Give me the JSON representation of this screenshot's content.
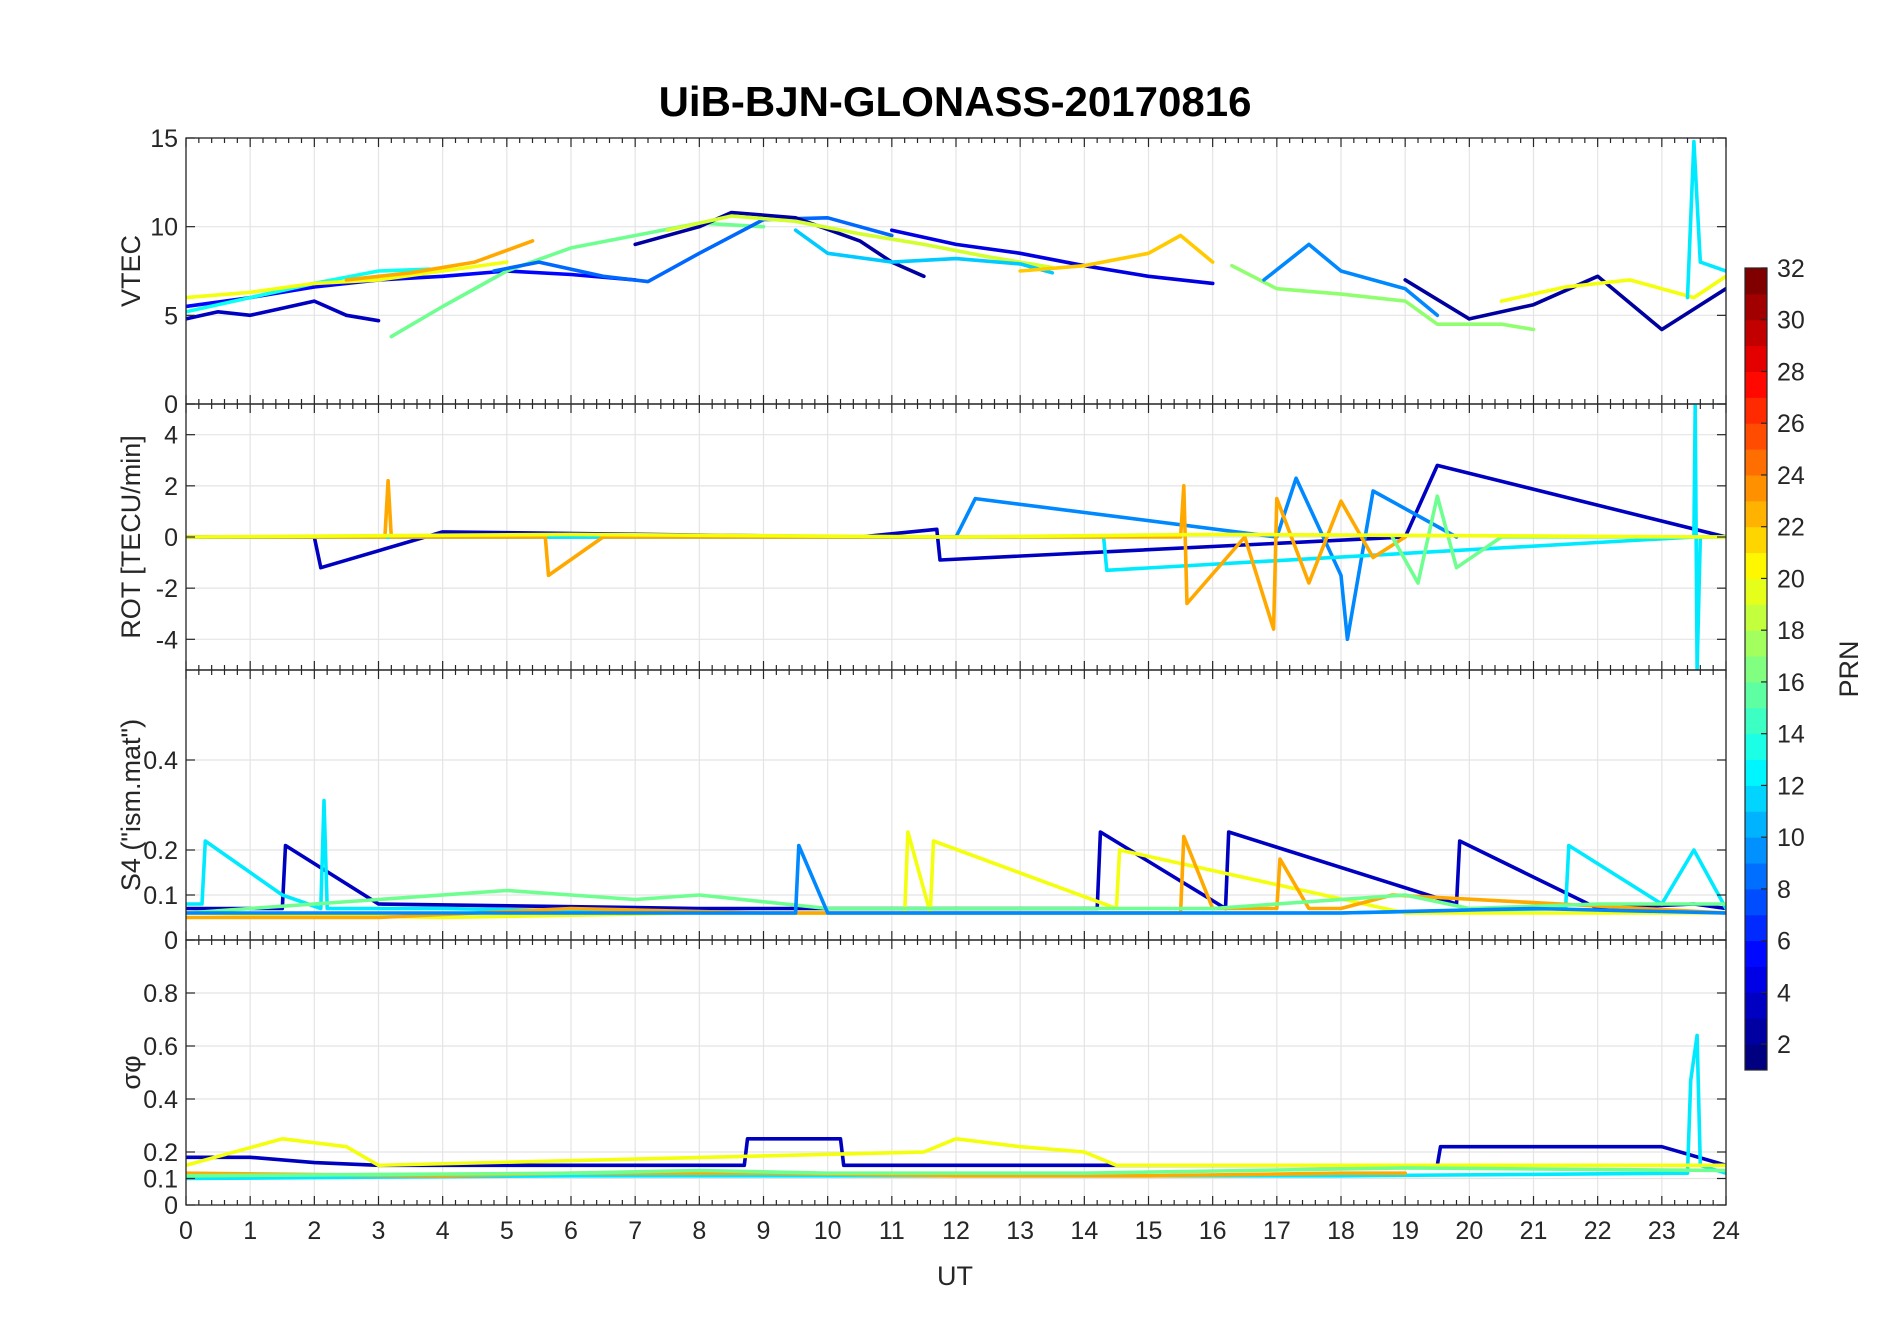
{
  "chart_data": {
    "type": "line",
    "title": "UiB-BJN-GLONASS-20170816",
    "xlabel": "UT",
    "xlim": [
      0,
      24
    ],
    "xticks": [
      "0",
      "1",
      "2",
      "3",
      "4",
      "5",
      "6",
      "7",
      "8",
      "9",
      "10",
      "11",
      "12",
      "13",
      "14",
      "15",
      "16",
      "17",
      "18",
      "19",
      "20",
      "21",
      "22",
      "23",
      "24"
    ],
    "grid": true,
    "panels": [
      {
        "ylabel": "VTEC",
        "ylim": [
          0,
          15
        ],
        "yticks": [
          {
            "v": 0,
            "t": "0"
          },
          {
            "v": 5,
            "t": "5"
          },
          {
            "v": 10,
            "t": "10"
          },
          {
            "v": 15,
            "t": "15"
          }
        ],
        "series": [
          {
            "prn": 3,
            "x": [
              0,
              0.5,
              1,
              1.5,
              2,
              2.5,
              3
            ],
            "y": [
              4.8,
              5.2,
              5.0,
              5.4,
              5.8,
              5.0,
              4.7
            ]
          },
          {
            "prn": 5,
            "x": [
              0,
              1,
              2,
              3,
              4,
              5,
              6,
              7
            ],
            "y": [
              5.5,
              6.0,
              6.6,
              7.0,
              7.2,
              7.5,
              7.3,
              7.0
            ]
          },
          {
            "prn": 13,
            "x": [
              0,
              1,
              2,
              3,
              3.8
            ],
            "y": [
              5.2,
              6.0,
              6.8,
              7.5,
              7.6
            ]
          },
          {
            "prn": 20,
            "x": [
              0,
              1,
              2,
              3,
              4,
              5
            ],
            "y": [
              6.0,
              6.3,
              6.8,
              7.0,
              7.5,
              8.0
            ]
          },
          {
            "prn": 23,
            "x": [
              2.5,
              3.5,
              4.5,
              5.4
            ],
            "y": [
              7.0,
              7.4,
              8.0,
              9.2
            ]
          },
          {
            "prn": 16,
            "x": [
              3.2,
              4,
              5,
              6,
              7,
              8,
              9
            ],
            "y": [
              3.8,
              5.5,
              7.5,
              8.8,
              9.5,
              10.2,
              10.0
            ]
          },
          {
            "prn": 8,
            "x": [
              4.8,
              5.5,
              6.5,
              7.2,
              8,
              9,
              10,
              11
            ],
            "y": [
              7.5,
              8.0,
              7.2,
              6.9,
              8.5,
              10.4,
              10.5,
              9.5
            ]
          },
          {
            "prn": 2,
            "x": [
              7,
              8,
              8.5,
              9.5,
              10.5,
              11,
              11.5
            ],
            "y": [
              9.0,
              10.0,
              10.8,
              10.5,
              9.2,
              8.0,
              7.2
            ]
          },
          {
            "prn": 19,
            "x": [
              7.5,
              8.5,
              9.5,
              10.5,
              11.5,
              12.5,
              13.5
            ],
            "y": [
              9.8,
              10.6,
              10.3,
              9.6,
              9.0,
              8.3,
              7.7
            ]
          },
          {
            "prn": 11,
            "x": [
              9.5,
              10,
              11,
              12,
              13,
              13.5
            ],
            "y": [
              9.8,
              8.5,
              8.0,
              8.2,
              7.9,
              7.4
            ]
          },
          {
            "prn": 4,
            "x": [
              11,
              12,
              13,
              14,
              15,
              16
            ],
            "y": [
              9.8,
              9.0,
              8.5,
              7.8,
              7.2,
              6.8
            ]
          },
          {
            "prn": 22,
            "x": [
              13,
              14,
              15,
              15.5,
              16
            ],
            "y": [
              7.5,
              7.8,
              8.5,
              9.5,
              8.0
            ]
          },
          {
            "prn": 17,
            "x": [
              16.3,
              17,
              18,
              19,
              19.5,
              20.5,
              21
            ],
            "y": [
              7.8,
              6.5,
              6.2,
              5.8,
              4.5,
              4.5,
              4.2
            ]
          },
          {
            "prn": 9,
            "x": [
              16.8,
              17.5,
              18,
              18.5,
              19,
              19.5
            ],
            "y": [
              7.0,
              9.0,
              7.5,
              7.0,
              6.5,
              5.0
            ]
          },
          {
            "prn": 2,
            "x": [
              19,
              20,
              21,
              22,
              23,
              24
            ],
            "y": [
              7.0,
              4.8,
              5.6,
              7.2,
              4.2,
              6.5
            ]
          },
          {
            "prn": 20,
            "x": [
              20.5,
              21.5,
              22.5,
              23.5,
              24
            ],
            "y": [
              5.8,
              6.6,
              7.0,
              6.0,
              7.2
            ]
          },
          {
            "prn": 12,
            "x": [
              23.4,
              23.5,
              23.6,
              24
            ],
            "y": [
              6.0,
              14.8,
              8.0,
              7.5
            ]
          }
        ]
      },
      {
        "ylabel": "ROT [TECU/min]",
        "ylim": [
          -5.2,
          5.2
        ],
        "yticks": [
          {
            "v": -4,
            "t": "-4"
          },
          {
            "v": -2,
            "t": "-2"
          },
          {
            "v": 0,
            "t": "0"
          },
          {
            "v": 2,
            "t": "2"
          },
          {
            "v": 4,
            "t": "4"
          }
        ],
        "series": [
          {
            "prn": 3,
            "x": [
              0,
              2,
              2.1,
              4,
              10.5,
              11.7,
              11.75,
              19,
              19.5,
              24
            ],
            "y": [
              0,
              0,
              -1.2,
              0.2,
              0,
              0.3,
              -0.9,
              0,
              2.8,
              0
            ]
          },
          {
            "prn": 9,
            "x": [
              0,
              6,
              8,
              12,
              12.3,
              17,
              17.3,
              18,
              18.1,
              18.5,
              19.8
            ],
            "y": [
              0,
              0,
              0,
              0,
              1.5,
              0,
              2.3,
              -1.5,
              -4.0,
              1.8,
              0
            ]
          },
          {
            "prn": 12,
            "x": [
              0,
              7.2,
              14.3,
              14.35,
              23.5,
              23.52,
              23.55,
              23.6,
              24
            ],
            "y": [
              0,
              0,
              0,
              -1.3,
              0,
              5.2,
              -5.2,
              0,
              0
            ]
          },
          {
            "prn": 23,
            "x": [
              0,
              3.1,
              3.15,
              3.2,
              5.6,
              5.65,
              6.5,
              15.5,
              15.55,
              15.6,
              16.5,
              16.95,
              17.0,
              17.5,
              18,
              18.5,
              19
            ],
            "y": [
              0,
              0,
              2.2,
              0,
              0,
              -1.5,
              0,
              0,
              2.0,
              -2.6,
              0,
              -3.6,
              1.5,
              -1.8,
              1.4,
              -0.8,
              0
            ]
          },
          {
            "prn": 16,
            "x": [
              18.8,
              19.2,
              19.5,
              19.8,
              20.5,
              24
            ],
            "y": [
              0,
              -1.8,
              1.6,
              -1.2,
              0,
              0
            ]
          },
          {
            "prn": 20,
            "x": [
              0,
              6,
              12,
              16,
              24
            ],
            "y": [
              0,
              0.1,
              0,
              0.1,
              0
            ]
          }
        ]
      },
      {
        "ylabel": "S4 (\"ism.mat\")",
        "ylim": [
          0,
          0.6
        ],
        "yticks": [
          {
            "v": 0,
            "t": "0"
          },
          {
            "v": 0.1,
            "t": "0.1"
          },
          {
            "v": 0.2,
            "t": "0.2"
          },
          {
            "v": 0.4,
            "t": "0.4"
          }
        ],
        "series": [
          {
            "prn": 3,
            "x": [
              0,
              1.5,
              1.55,
              3,
              8,
              12,
              14.2,
              14.25,
              16.2,
              16.25,
              19.8,
              19.85,
              22,
              23.5,
              24
            ],
            "y": [
              0.07,
              0.07,
              0.21,
              0.08,
              0.07,
              0.07,
              0.07,
              0.24,
              0.07,
              0.24,
              0.08,
              0.22,
              0.07,
              0.08,
              0.07
            ]
          },
          {
            "prn": 12,
            "x": [
              0,
              0.25,
              0.3,
              1.5,
              2.1,
              2.15,
              2.2,
              4,
              8,
              12,
              18,
              21.5,
              21.55,
              23,
              23.5,
              24
            ],
            "y": [
              0.08,
              0.08,
              0.22,
              0.1,
              0.07,
              0.31,
              0.07,
              0.07,
              0.06,
              0.06,
              0.06,
              0.07,
              0.21,
              0.08,
              0.2,
              0.07
            ]
          },
          {
            "prn": 20,
            "x": [
              0,
              4,
              8,
              11.2,
              11.25,
              11.6,
              11.65,
              14.5,
              14.55,
              19,
              24
            ],
            "y": [
              0.06,
              0.05,
              0.06,
              0.06,
              0.24,
              0.06,
              0.22,
              0.07,
              0.2,
              0.06,
              0.06
            ]
          },
          {
            "prn": 23,
            "x": [
              0,
              3,
              6,
              9,
              12,
              15,
              15.5,
              15.55,
              16,
              17,
              17.05,
              17.5,
              18,
              18.8,
              24
            ],
            "y": [
              0.05,
              0.05,
              0.07,
              0.06,
              0.06,
              0.06,
              0.06,
              0.23,
              0.07,
              0.07,
              0.18,
              0.07,
              0.07,
              0.1,
              0.06
            ]
          },
          {
            "prn": 16,
            "x": [
              0,
              5,
              7,
              8,
              10,
              13,
              16,
              19,
              20,
              22,
              24
            ],
            "y": [
              0.06,
              0.11,
              0.09,
              0.1,
              0.07,
              0.07,
              0.07,
              0.1,
              0.07,
              0.08,
              0.08
            ]
          },
          {
            "prn": 9,
            "x": [
              0,
              6,
              9.5,
              9.55,
              10,
              15,
              18,
              21,
              24
            ],
            "y": [
              0.06,
              0.06,
              0.06,
              0.21,
              0.06,
              0.06,
              0.06,
              0.07,
              0.06
            ]
          }
        ]
      },
      {
        "ylabel": "σφ",
        "ylim": [
          0,
          1
        ],
        "yticks": [
          {
            "v": 0,
            "t": "0"
          },
          {
            "v": 0.1,
            "t": "0.1"
          },
          {
            "v": 0.2,
            "t": "0.2"
          },
          {
            "v": 0.4,
            "t": "0.4"
          },
          {
            "v": 0.6,
            "t": "0.6"
          },
          {
            "v": 0.8,
            "t": "0.8"
          }
        ],
        "series": [
          {
            "prn": 3,
            "x": [
              0,
              1,
              2,
              3,
              8.7,
              8.75,
              10.2,
              10.25,
              19.5,
              19.55,
              23,
              24
            ],
            "y": [
              0.18,
              0.18,
              0.16,
              0.15,
              0.15,
              0.25,
              0.25,
              0.15,
              0.15,
              0.22,
              0.22,
              0.15
            ]
          },
          {
            "prn": 12,
            "x": [
              0,
              6,
              12,
              18,
              23.4,
              23.45,
              23.55,
              23.6,
              24
            ],
            "y": [
              0.1,
              0.11,
              0.11,
              0.11,
              0.12,
              0.47,
              0.64,
              0.15,
              0.12
            ]
          },
          {
            "prn": 20,
            "x": [
              0,
              1.5,
              2.5,
              3,
              11.5,
              12,
              13,
              14,
              14.5,
              15,
              24
            ],
            "y": [
              0.15,
              0.25,
              0.22,
              0.15,
              0.2,
              0.25,
              0.22,
              0.2,
              0.15,
              0.15,
              0.15
            ]
          },
          {
            "prn": 23,
            "x": [
              0,
              4,
              6,
              9,
              12,
              15,
              18,
              19
            ],
            "y": [
              0.12,
              0.11,
              0.12,
              0.12,
              0.11,
              0.11,
              0.12,
              0.12
            ]
          },
          {
            "prn": 16,
            "x": [
              0,
              6,
              8,
              10,
              14,
              19,
              24
            ],
            "y": [
              0.11,
              0.12,
              0.13,
              0.12,
              0.12,
              0.14,
              0.13
            ]
          }
        ]
      }
    ],
    "colorbar": {
      "label": "PRN",
      "range": [
        1,
        32
      ],
      "ticks": [
        "2",
        "4",
        "6",
        "8",
        "10",
        "12",
        "14",
        "16",
        "18",
        "20",
        "22",
        "24",
        "26",
        "28",
        "30",
        "32"
      ],
      "colormap": "jet",
      "placement": "right"
    }
  }
}
